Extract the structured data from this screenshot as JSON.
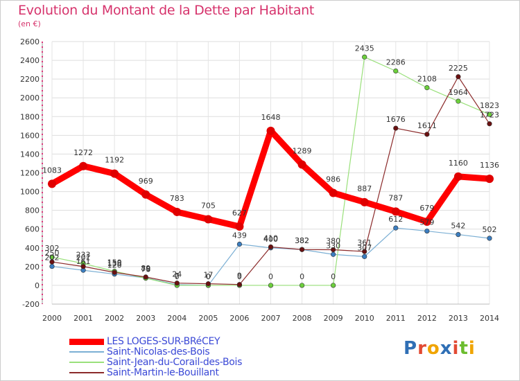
{
  "title": "Evolution du Montant de la Dette par Habitant",
  "subtitle": "(en €)",
  "logo": "Proxiti",
  "chart_data": {
    "type": "line",
    "x": [
      "2000",
      "2001",
      "2002",
      "2003",
      "2004",
      "2005",
      "2006",
      "2007",
      "2008",
      "2009",
      "2010",
      "2011",
      "2012",
      "2013",
      "2014"
    ],
    "ylim": [
      -200,
      2600
    ],
    "yticks": [
      -200,
      0,
      200,
      400,
      600,
      800,
      1000,
      1200,
      1400,
      1600,
      1800,
      2000,
      2200,
      2400,
      2600
    ],
    "grid": true,
    "legend": "bottom-left",
    "series": [
      {
        "name": "LES LOGES-SUR-BRéCEY",
        "color": "#ff0000",
        "marker": "#e00000",
        "width": 9,
        "values": [
          1083,
          1272,
          1192,
          969,
          783,
          705,
          627,
          1648,
          1289,
          986,
          887,
          787,
          679,
          1160,
          1136
        ]
      },
      {
        "name": "Saint-Nicolas-des-Bois",
        "color": "#7bafd4",
        "marker": "#3b7dbf",
        "width": 1.2,
        "values": [
          202,
          161,
          120,
          79,
          7,
          0,
          439,
          400,
          382,
          330,
          307,
          612,
          579,
          542,
          502
        ]
      },
      {
        "name": "Saint-Jean-du-Corail-des-Bois",
        "color": "#99e07a",
        "marker": "#6ccf3c",
        "width": 1.2,
        "values": [
          302,
          233,
          150,
          76,
          0,
          0,
          0,
          0,
          0,
          0,
          2435,
          2286,
          2108,
          1964,
          1823
        ]
      },
      {
        "name": "Saint-Martin-le-Bouillant",
        "color": "#8b2a2a",
        "marker": "#6a1010",
        "width": 1.2,
        "values": [
          250,
          201,
          138,
          89,
          24,
          17,
          9,
          410,
          382,
          380,
          361,
          1676,
          1611,
          2225,
          1723
        ]
      }
    ]
  }
}
